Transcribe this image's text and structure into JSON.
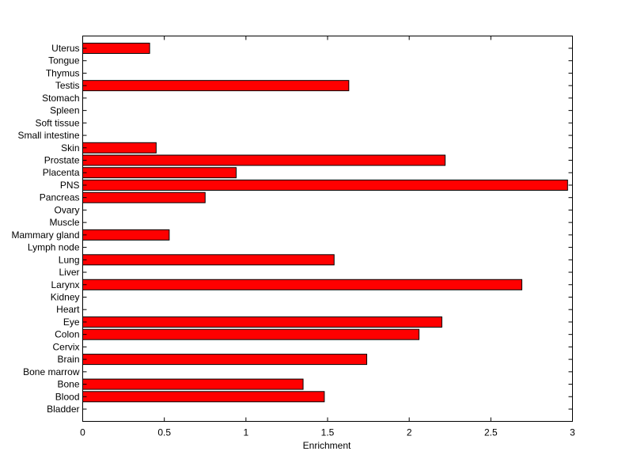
{
  "chart_data": {
    "type": "bar",
    "orientation": "horizontal",
    "categories": [
      "Bladder",
      "Blood",
      "Bone",
      "Bone marrow",
      "Brain",
      "Cervix",
      "Colon",
      "Eye",
      "Heart",
      "Kidney",
      "Larynx",
      "Liver",
      "Lung",
      "Lymph node",
      "Mammary gland",
      "Muscle",
      "Ovary",
      "Pancreas",
      "PNS",
      "Placenta",
      "Prostate",
      "Skin",
      "Small intestine",
      "Soft tissue",
      "Spleen",
      "Stomach",
      "Testis",
      "Thymus",
      "Tongue",
      "Uterus"
    ],
    "values": [
      0,
      1.48,
      1.35,
      0,
      1.74,
      0,
      2.06,
      2.2,
      0,
      0,
      2.69,
      0,
      1.54,
      0,
      0.53,
      0,
      0,
      0.75,
      2.97,
      0.94,
      2.22,
      0.45,
      0,
      0,
      0,
      0,
      1.63,
      0,
      0,
      0.41
    ],
    "title": "",
    "xlabel": "Enrichment",
    "ylabel": "",
    "xlim": [
      0,
      3
    ],
    "xticks": [
      "0",
      "0.5",
      "1",
      "1.5",
      "2",
      "2.5",
      "3"
    ],
    "grid": false,
    "bar_color": "#ff0000",
    "edge_color": "#000000"
  }
}
